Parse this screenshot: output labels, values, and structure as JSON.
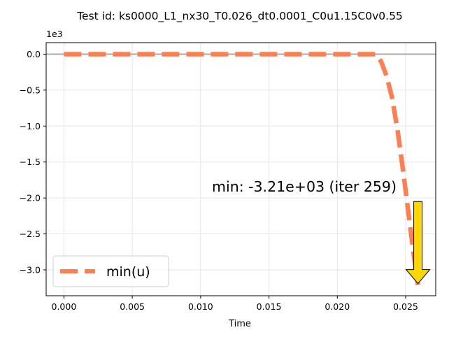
{
  "chart_data": {
    "type": "line",
    "title": "Test id:  ks0000_L1_nx30_T0.026_dt0.0001_C0u1.15C0v0.55",
    "xlabel": "Time",
    "ylabel": "",
    "y_offset_label": "1e3",
    "xlim": [
      -0.0013,
      0.0272
    ],
    "ylim": [
      -3.36,
      0.16
    ],
    "y_scale_note": "values shown in units of 1e3",
    "grid": true,
    "legend_position": "lower-left",
    "x_ticks": [
      "0.000",
      "0.005",
      "0.010",
      "0.015",
      "0.020",
      "0.025"
    ],
    "x_tick_values": [
      0.0,
      0.005,
      0.01,
      0.015,
      0.02,
      0.025
    ],
    "y_ticks": [
      "0.0",
      "−0.5",
      "−1.0",
      "−1.5",
      "−2.0",
      "−2.5",
      "−3.0"
    ],
    "y_tick_values": [
      0.0,
      -0.5,
      -1.0,
      -1.5,
      -2.0,
      -2.5,
      -3.0
    ],
    "reference_line_y": 0.0,
    "series": [
      {
        "name": "min(u)",
        "color": "#FF7F50",
        "style": "dashed",
        "x": [
          0.0,
          0.005,
          0.01,
          0.015,
          0.02,
          0.0225,
          0.0228,
          0.0232,
          0.0236,
          0.024,
          0.0244,
          0.0248,
          0.0252,
          0.0256,
          0.0259
        ],
        "y": [
          0.0,
          0.0,
          0.0,
          0.0,
          0.0,
          0.0,
          0.0,
          -0.1,
          -0.3,
          -0.6,
          -1.05,
          -1.6,
          -2.2,
          -2.8,
          -3.21
        ]
      }
    ],
    "annotation": {
      "text": "min: -3.21e+03 (iter 259)",
      "arrow_color": "#FFD700",
      "target_x": 0.0259,
      "target_y": -3.21
    }
  }
}
